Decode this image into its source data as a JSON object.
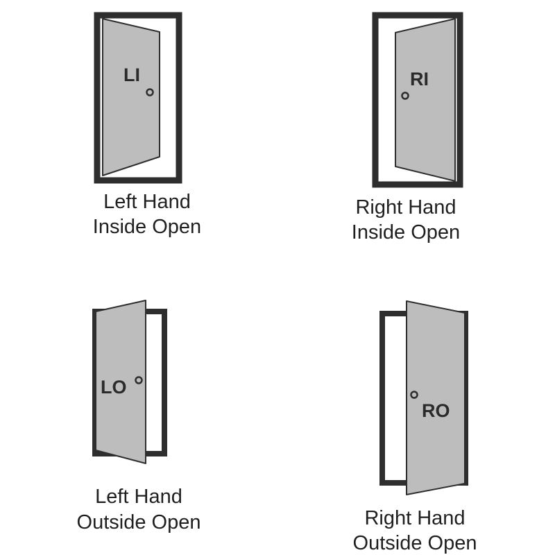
{
  "colors": {
    "frame": "#2e2e2e",
    "leaf": "#bdbdbd",
    "text": "#1f1f1f"
  },
  "doors": [
    {
      "code": "LI",
      "caption_line1": "Left Hand",
      "caption_line2": "Inside Open"
    },
    {
      "code": "RI",
      "caption_line1": "Right Hand",
      "caption_line2": "Inside Open"
    },
    {
      "code": "LO",
      "caption_line1": "Left Hand",
      "caption_line2": "Outside Open"
    },
    {
      "code": "RO",
      "caption_line1": "Right Hand",
      "caption_line2": "Outside Open"
    }
  ]
}
